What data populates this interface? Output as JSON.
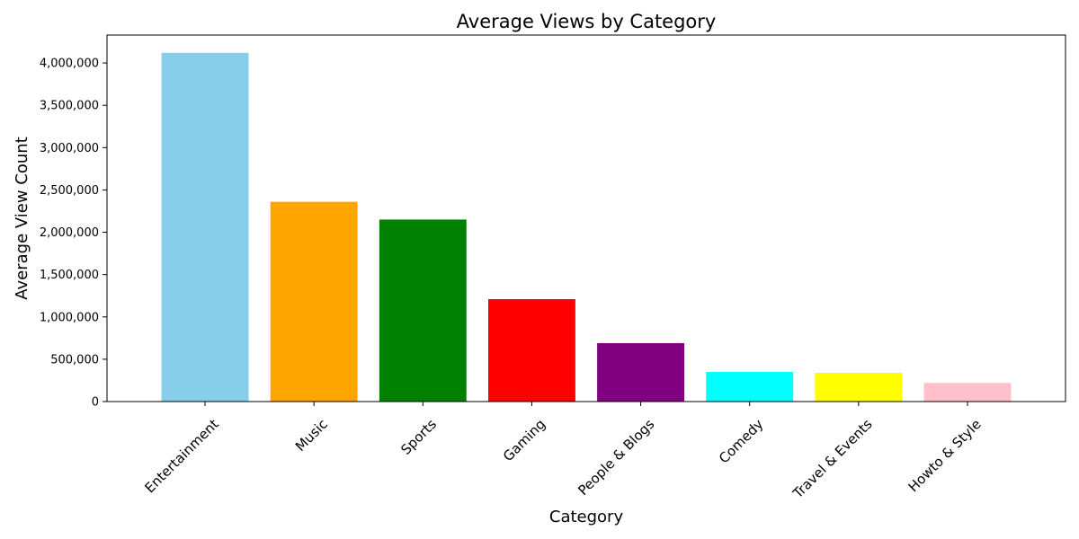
{
  "chart_data": {
    "type": "bar",
    "title": "Average Views by Category",
    "xlabel": "Category",
    "ylabel": "Average View Count",
    "categories": [
      "Entertainment",
      "Music",
      "Sports",
      "Gaming",
      "People & Blogs",
      "Comedy",
      "Travel & Events",
      "Howto & Style"
    ],
    "values": [
      4120000,
      2360000,
      2150000,
      1210000,
      690000,
      350000,
      340000,
      220000
    ],
    "colors": [
      "#87ceeb",
      "#ffa500",
      "#008000",
      "#ff0000",
      "#800080",
      "#00ffff",
      "#ffff00",
      "#ffc0cb"
    ],
    "ylim": [
      0,
      4330000
    ],
    "yticks": [
      0,
      500000,
      1000000,
      1500000,
      2000000,
      2500000,
      3000000,
      3500000,
      4000000
    ],
    "ytick_labels": [
      "0",
      "500,000",
      "1,000,000",
      "1,500,000",
      "2,000,000",
      "2,500,000",
      "3,000,000",
      "3,500,000",
      "4,000,000"
    ],
    "grid": false,
    "legend": "none"
  }
}
